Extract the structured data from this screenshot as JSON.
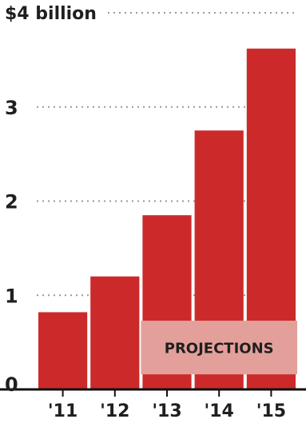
{
  "chart_data": {
    "type": "bar",
    "categories": [
      "'11",
      "'12",
      "'13",
      "'14",
      "'15"
    ],
    "values": [
      0.82,
      1.2,
      1.85,
      2.75,
      3.62
    ],
    "projected_from_index": 2,
    "ylim": [
      0,
      4
    ],
    "yticks": [
      0,
      1,
      2,
      3,
      4
    ],
    "ytick_labels": [
      "0",
      "1",
      "2",
      "3",
      "$4 billion"
    ],
    "annotation": "PROJECTIONS",
    "grid": true,
    "colors": {
      "bar": "#cc2a2a",
      "projection_band": "#e3a09a",
      "grid": "#999999",
      "text": "#1f1f1f"
    }
  }
}
